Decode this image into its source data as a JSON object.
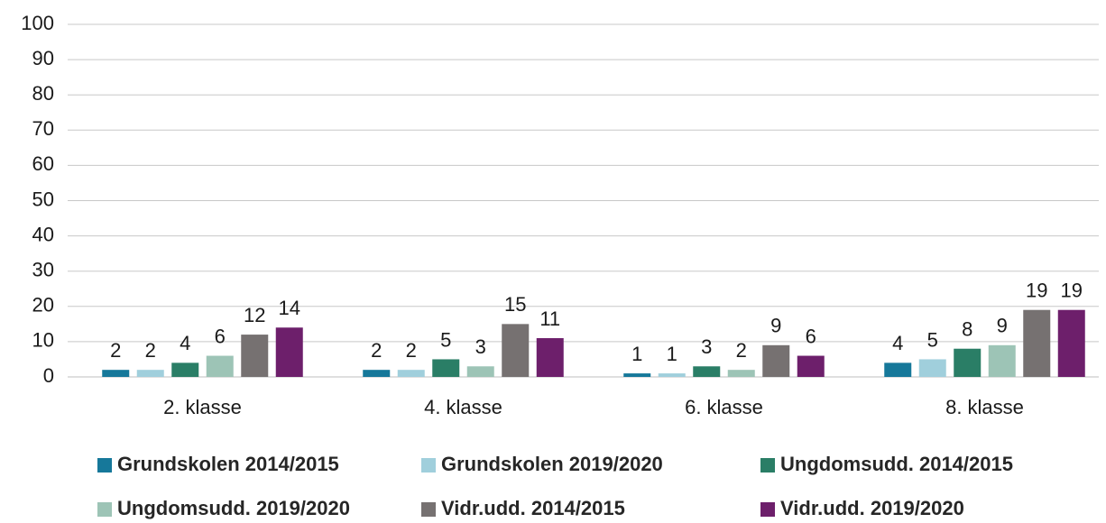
{
  "chart_data": {
    "type": "bar",
    "categories": [
      "2. klasse",
      "4. klasse",
      "6. klasse",
      "8. klasse"
    ],
    "series": [
      {
        "name": "Grundskolen 2014/2015",
        "color": "#16789a",
        "values": [
          2,
          2,
          1,
          4
        ]
      },
      {
        "name": "Grundskolen 2019/2020",
        "color": "#a0cfdc",
        "values": [
          2,
          2,
          1,
          5
        ]
      },
      {
        "name": "Ungdomsudd. 2014/2015",
        "color": "#2a7e66",
        "values": [
          4,
          5,
          3,
          8
        ]
      },
      {
        "name": "Ungdomsudd. 2019/2020",
        "color": "#9dc4b6",
        "values": [
          6,
          3,
          2,
          9
        ]
      },
      {
        "name": "Vidr.udd. 2014/2015",
        "color": "#767171",
        "values": [
          12,
          15,
          9,
          19
        ]
      },
      {
        "name": "Vidr.udd. 2019/2020",
        "color": "#6d1f6b",
        "values": [
          14,
          11,
          6,
          19
        ]
      }
    ],
    "ylim": [
      0,
      100
    ],
    "yticks": [
      0,
      10,
      20,
      30,
      40,
      50,
      60,
      70,
      80,
      90,
      100
    ],
    "grid": true,
    "legend": "bottom"
  }
}
